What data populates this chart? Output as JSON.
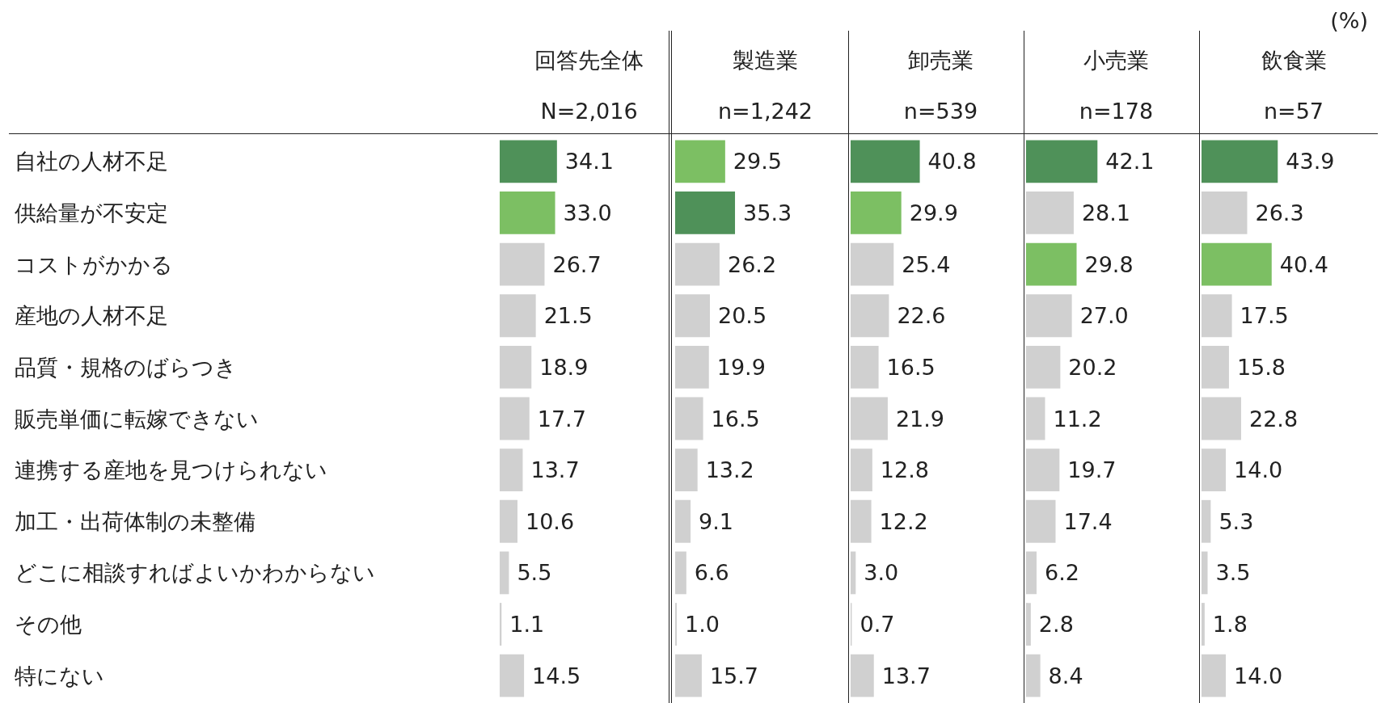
{
  "chart_data": [
    {
      "type": "bar",
      "orientation": "horizontal",
      "title": "回答先全体",
      "subtitle": "N=2,016",
      "tick_labels": "y",
      "categories": [
        "自社の人材不足",
        "供給量が不安定",
        "コストがかかる",
        "産地の人材不足",
        "品質・規格のばらつき",
        "販売単価に転嫁できない",
        "連携する産地を見つけられない",
        "加工・出荷体制の未整備",
        "どこに相談すればよいかわからない",
        "その他",
        "特にない"
      ],
      "values": [
        34.1,
        33.0,
        26.7,
        21.5,
        18.9,
        17.7,
        13.7,
        10.6,
        5.5,
        1.1,
        14.5
      ],
      "value_labels": [
        "34.1",
        "33.0",
        "26.7",
        "21.5",
        "18.9",
        "17.7",
        "13.7",
        "10.6",
        "5.5",
        "1.1",
        "14.5"
      ],
      "colors": [
        "#4f9159",
        "#7cbf63",
        "#d0d0d0",
        "#d0d0d0",
        "#d0d0d0",
        "#d0d0d0",
        "#d0d0d0",
        "#d0d0d0",
        "#d0d0d0",
        "#d0d0d0",
        "#d0d0d0"
      ]
    },
    {
      "type": "bar",
      "orientation": "horizontal",
      "title": "製造業",
      "subtitle": "n=1,242",
      "tick_labels": "y",
      "categories": [
        null,
        null,
        null,
        null,
        null,
        null,
        null,
        null,
        null,
        null,
        null
      ],
      "values": [
        29.5,
        35.3,
        26.2,
        20.5,
        19.9,
        16.5,
        13.2,
        9.1,
        6.6,
        1.0,
        15.7
      ],
      "value_labels": [
        "29.5",
        "35.3",
        "26.2",
        "20.5",
        "19.9",
        "16.5",
        "13.2",
        "9.1",
        "6.6",
        "1.0",
        "15.7"
      ],
      "colors": [
        "#7cbf63",
        "#4f9159",
        "#d0d0d0",
        "#d0d0d0",
        "#d0d0d0",
        "#d0d0d0",
        "#d0d0d0",
        "#d0d0d0",
        "#d0d0d0",
        "#d0d0d0",
        "#d0d0d0"
      ]
    },
    {
      "type": "bar",
      "orientation": "horizontal",
      "title": "卸売業",
      "subtitle": "n=539",
      "tick_labels": "y",
      "categories": [
        null,
        null,
        null,
        null,
        null,
        null,
        null,
        null,
        null,
        null,
        null
      ],
      "values": [
        40.8,
        29.9,
        25.4,
        22.6,
        16.5,
        21.9,
        12.8,
        12.2,
        3.0,
        0.7,
        13.7
      ],
      "value_labels": [
        "40.8",
        "29.9",
        "25.4",
        "22.6",
        "16.5",
        "21.9",
        "12.8",
        "12.2",
        "3.0",
        "0.7",
        "13.7"
      ],
      "colors": [
        "#4f9159",
        "#7cbf63",
        "#d0d0d0",
        "#d0d0d0",
        "#d0d0d0",
        "#d0d0d0",
        "#d0d0d0",
        "#d0d0d0",
        "#d0d0d0",
        "#d0d0d0",
        "#d0d0d0"
      ]
    },
    {
      "type": "bar",
      "orientation": "horizontal",
      "title": "小売業",
      "subtitle": "n=178",
      "tick_labels": "y",
      "categories": [
        null,
        null,
        null,
        null,
        null,
        null,
        null,
        null,
        null,
        null,
        null
      ],
      "values": [
        42.1,
        28.1,
        29.8,
        27.0,
        20.2,
        11.2,
        19.7,
        17.4,
        6.2,
        2.8,
        8.4
      ],
      "value_labels": [
        "42.1",
        "28.1",
        "29.8",
        "27.0",
        "20.2",
        "11.2",
        "19.7",
        "17.4",
        "6.2",
        "2.8",
        "8.4"
      ],
      "colors": [
        "#4f9159",
        "#d0d0d0",
        "#7cbf63",
        "#d0d0d0",
        "#d0d0d0",
        "#d0d0d0",
        "#d0d0d0",
        "#d0d0d0",
        "#d0d0d0",
        "#d0d0d0",
        "#d0d0d0"
      ]
    },
    {
      "type": "bar",
      "orientation": "horizontal",
      "title": "飲食業",
      "subtitle": "n=57",
      "tick_labels": "y",
      "annotations": [
        "(%)"
      ],
      "categories": [
        null,
        null,
        null,
        null,
        null,
        null,
        null,
        null,
        null,
        null,
        null
      ],
      "values": [
        43.9,
        26.3,
        40.4,
        17.5,
        15.8,
        22.8,
        14.0,
        5.3,
        3.5,
        1.8,
        14.0
      ],
      "value_labels": [
        "43.9",
        "26.3",
        "40.4",
        "17.5",
        "15.8",
        "22.8",
        "14.0",
        "5.3",
        "3.5",
        "1.8",
        "14.0"
      ],
      "colors": [
        "#4f9159",
        "#d0d0d0",
        "#7cbf63",
        "#d0d0d0",
        "#d0d0d0",
        "#d0d0d0",
        "#d0d0d0",
        "#d0d0d0",
        "#d0d0d0",
        "#d0d0d0",
        "#d0d0d0"
      ]
    }
  ]
}
